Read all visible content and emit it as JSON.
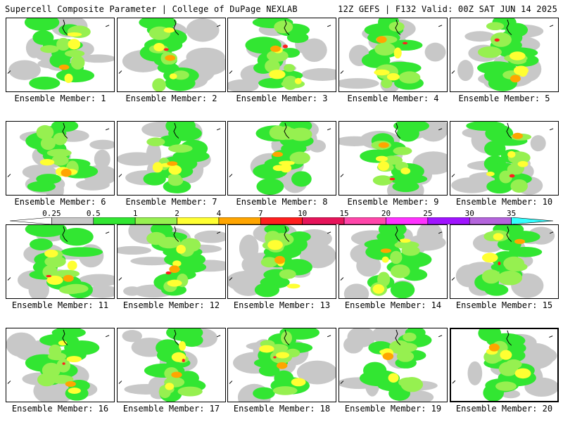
{
  "header": {
    "left_title": "Supercell Composite Parameter | College of DuPage NEXLAB",
    "right_title": "12Z GEFS | F132 Valid: 00Z SAT JUN 14 2025"
  },
  "members": [
    {
      "number": 1,
      "label": "Ensemble Member: 1"
    },
    {
      "number": 2,
      "label": "Ensemble Member: 2"
    },
    {
      "number": 3,
      "label": "Ensemble Member: 3"
    },
    {
      "number": 4,
      "label": "Ensemble Member: 4"
    },
    {
      "number": 5,
      "label": "Ensemble Member: 5"
    },
    {
      "number": 6,
      "label": "Ensemble Member: 6"
    },
    {
      "number": 7,
      "label": "Ensemble Member: 7"
    },
    {
      "number": 8,
      "label": "Ensemble Member: 8"
    },
    {
      "number": 9,
      "label": "Ensemble Member: 9"
    },
    {
      "number": 10,
      "label": "Ensemble Member: 10"
    },
    {
      "number": 11,
      "label": "Ensemble Member: 11"
    },
    {
      "number": 12,
      "label": "Ensemble Member: 12"
    },
    {
      "number": 13,
      "label": "Ensemble Member: 13"
    },
    {
      "number": 14,
      "label": "Ensemble Member: 14"
    },
    {
      "number": 15,
      "label": "Ensemble Member: 15"
    },
    {
      "number": 16,
      "label": "Ensemble Member: 16"
    },
    {
      "number": 17,
      "label": "Ensemble Member: 17"
    },
    {
      "number": 18,
      "label": "Ensemble Member: 18"
    },
    {
      "number": 19,
      "label": "Ensemble Member: 19"
    },
    {
      "number": 20,
      "label": "Ensemble Member: 20"
    }
  ],
  "selected_member": 20,
  "colorbar": {
    "thresholds": [
      "0.25",
      "0.5",
      "1",
      "2",
      "4",
      "7",
      "10",
      "15",
      "20",
      "25",
      "30",
      "35"
    ],
    "colors": [
      "#c8c8c8",
      "#32e632",
      "#96f050",
      "#ffff32",
      "#ffa500",
      "#ff1e1e",
      "#e6145a",
      "#ff46aa",
      "#ff32ff",
      "#a014ff",
      "#b464dc",
      "#32ffff"
    ],
    "outer_fill": "#ffffff"
  }
}
